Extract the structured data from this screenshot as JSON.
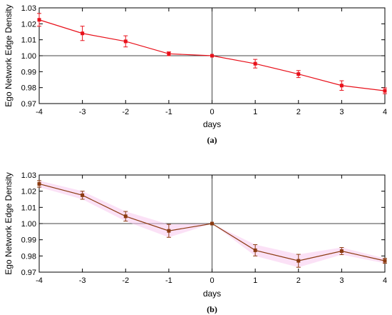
{
  "chart_data": [
    {
      "type": "line",
      "caption": "(a)",
      "xlabel": "days",
      "ylabel": "Ego Network Edge Density",
      "xlim": [
        -4,
        4
      ],
      "ylim": [
        0.97,
        1.03
      ],
      "xticks": [
        "-4",
        "-3",
        "-2",
        "-1",
        "0",
        "1",
        "2",
        "3",
        "4"
      ],
      "yticks": [
        "0.97",
        "0.98",
        "0.99",
        "1.00",
        "1.01",
        "1.02",
        "1.03"
      ],
      "reference_lines": {
        "y": 1.0,
        "x": 0
      },
      "series": [
        {
          "color": "#e8101a",
          "marker": "square",
          "x": [
            -4,
            -3,
            -2,
            -1,
            0,
            1,
            2,
            3,
            4
          ],
          "y": [
            1.0225,
            1.014,
            1.009,
            1.0012,
            1.0,
            0.995,
            0.9885,
            0.9813,
            0.978
          ],
          "err": [
            0.004,
            0.0045,
            0.0035,
            0.0012,
            0,
            0.0027,
            0.0022,
            0.003,
            0.0018
          ]
        }
      ]
    },
    {
      "type": "line",
      "caption": "(b)",
      "xlabel": "days",
      "ylabel": "Ego Network Edge Density",
      "xlim": [
        -4,
        4
      ],
      "ylim": [
        0.97,
        1.03
      ],
      "xticks": [
        "-4",
        "-3",
        "-2",
        "-1",
        "0",
        "1",
        "2",
        "3",
        "4"
      ],
      "yticks": [
        "0.97",
        "0.98",
        "0.99",
        "1.00",
        "1.01",
        "1.02",
        "1.03"
      ],
      "reference_lines": {
        "y": 1.0,
        "x": 0
      },
      "series": [
        {
          "color": "#8b3a10",
          "band_color": "#f7c9ef",
          "marker": "square",
          "x": [
            -4,
            -3,
            -2,
            -1,
            0,
            1,
            2,
            3,
            4
          ],
          "y": [
            1.0245,
            1.0175,
            1.0045,
            0.9955,
            1.0,
            0.9835,
            0.977,
            0.983,
            0.977
          ],
          "err": [
            0.002,
            0.0025,
            0.003,
            0.004,
            0,
            0.0035,
            0.004,
            0.0022,
            0.0015
          ]
        }
      ]
    }
  ]
}
